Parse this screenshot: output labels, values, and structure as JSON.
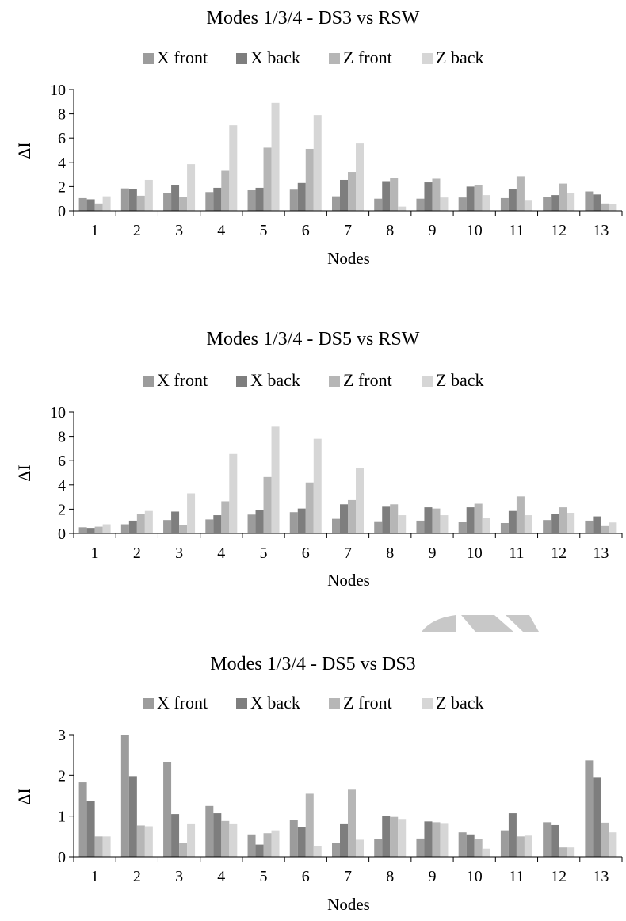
{
  "colors": {
    "series": [
      "#9c9c9c",
      "#7e7e7e",
      "#b6b6b6",
      "#d6d6d6"
    ],
    "axis": "#000000",
    "watermark": "#c8c8c8"
  },
  "chart_data": [
    {
      "type": "bar",
      "title": "Modes 1/3/4 - DS3 vs RSW",
      "xlabel": "Nodes",
      "ylabel": "ΔI",
      "ylim": [
        0,
        10
      ],
      "yticks": [
        0,
        2,
        4,
        6,
        8,
        10
      ],
      "grid": false,
      "legend": "top",
      "categories": [
        "1",
        "2",
        "3",
        "4",
        "5",
        "6",
        "7",
        "8",
        "9",
        "10",
        "11",
        "12",
        "13"
      ],
      "series": [
        {
          "name": "X front",
          "values": [
            1.05,
            1.85,
            1.5,
            1.55,
            1.7,
            1.75,
            1.2,
            1.0,
            1.0,
            1.1,
            1.05,
            1.15,
            1.6
          ]
        },
        {
          "name": "X back",
          "values": [
            0.95,
            1.8,
            2.15,
            1.9,
            1.9,
            2.3,
            2.55,
            2.45,
            2.35,
            2.0,
            1.8,
            1.3,
            1.35
          ]
        },
        {
          "name": "Z front",
          "values": [
            0.6,
            1.25,
            1.15,
            3.3,
            5.2,
            5.1,
            3.2,
            2.7,
            2.65,
            2.1,
            2.85,
            2.25,
            0.6
          ]
        },
        {
          "name": "Z back",
          "values": [
            1.2,
            2.55,
            3.85,
            7.05,
            8.9,
            7.9,
            5.55,
            0.35,
            1.1,
            1.3,
            0.9,
            1.5,
            0.55
          ]
        }
      ]
    },
    {
      "type": "bar",
      "title": "Modes 1/3/4 - DS5 vs RSW",
      "xlabel": "Nodes",
      "ylabel": "ΔI",
      "ylim": [
        0,
        10
      ],
      "yticks": [
        0,
        2,
        4,
        6,
        8,
        10
      ],
      "grid": false,
      "legend": "top",
      "categories": [
        "1",
        "2",
        "3",
        "4",
        "5",
        "6",
        "7",
        "8",
        "9",
        "10",
        "11",
        "12",
        "13"
      ],
      "series": [
        {
          "name": "X front",
          "values": [
            0.5,
            0.75,
            1.1,
            1.15,
            1.55,
            1.75,
            1.2,
            1.0,
            1.05,
            0.95,
            0.85,
            1.1,
            1.05
          ]
        },
        {
          "name": "X back",
          "values": [
            0.45,
            1.05,
            1.8,
            1.5,
            1.95,
            2.05,
            2.4,
            2.2,
            2.15,
            2.15,
            1.85,
            1.6,
            1.4
          ]
        },
        {
          "name": "Z front",
          "values": [
            0.55,
            1.6,
            0.7,
            2.65,
            4.65,
            4.2,
            2.75,
            2.4,
            2.05,
            2.45,
            3.05,
            2.15,
            0.6
          ]
        },
        {
          "name": "Z back",
          "values": [
            0.75,
            1.85,
            3.3,
            6.55,
            8.8,
            7.8,
            5.4,
            1.5,
            1.5,
            1.3,
            1.5,
            1.7,
            0.9
          ]
        }
      ]
    },
    {
      "type": "bar",
      "title": "Modes 1/3/4 - DS5 vs DS3",
      "xlabel": "Nodes",
      "ylabel": "ΔI",
      "ylim": [
        0,
        3
      ],
      "yticks": [
        0,
        1,
        2,
        3
      ],
      "grid": false,
      "legend": "top",
      "categories": [
        "1",
        "2",
        "3",
        "4",
        "5",
        "6",
        "7",
        "8",
        "9",
        "10",
        "11",
        "12",
        "13"
      ],
      "series": [
        {
          "name": "X front",
          "values": [
            1.83,
            3.0,
            2.33,
            1.25,
            0.55,
            0.9,
            0.35,
            0.43,
            0.45,
            0.6,
            0.65,
            0.85,
            2.37
          ]
        },
        {
          "name": "X back",
          "values": [
            1.37,
            1.98,
            1.05,
            1.07,
            0.3,
            0.73,
            0.82,
            1.0,
            0.87,
            0.55,
            1.07,
            0.78,
            1.96
          ]
        },
        {
          "name": "Z front",
          "values": [
            0.5,
            0.77,
            0.35,
            0.88,
            0.58,
            1.55,
            1.65,
            0.98,
            0.85,
            0.43,
            0.5,
            0.23,
            0.84
          ]
        },
        {
          "name": "Z back",
          "values": [
            0.5,
            0.75,
            0.82,
            0.82,
            0.65,
            0.27,
            0.42,
            0.93,
            0.83,
            0.2,
            0.52,
            0.23,
            0.6
          ]
        }
      ]
    }
  ]
}
